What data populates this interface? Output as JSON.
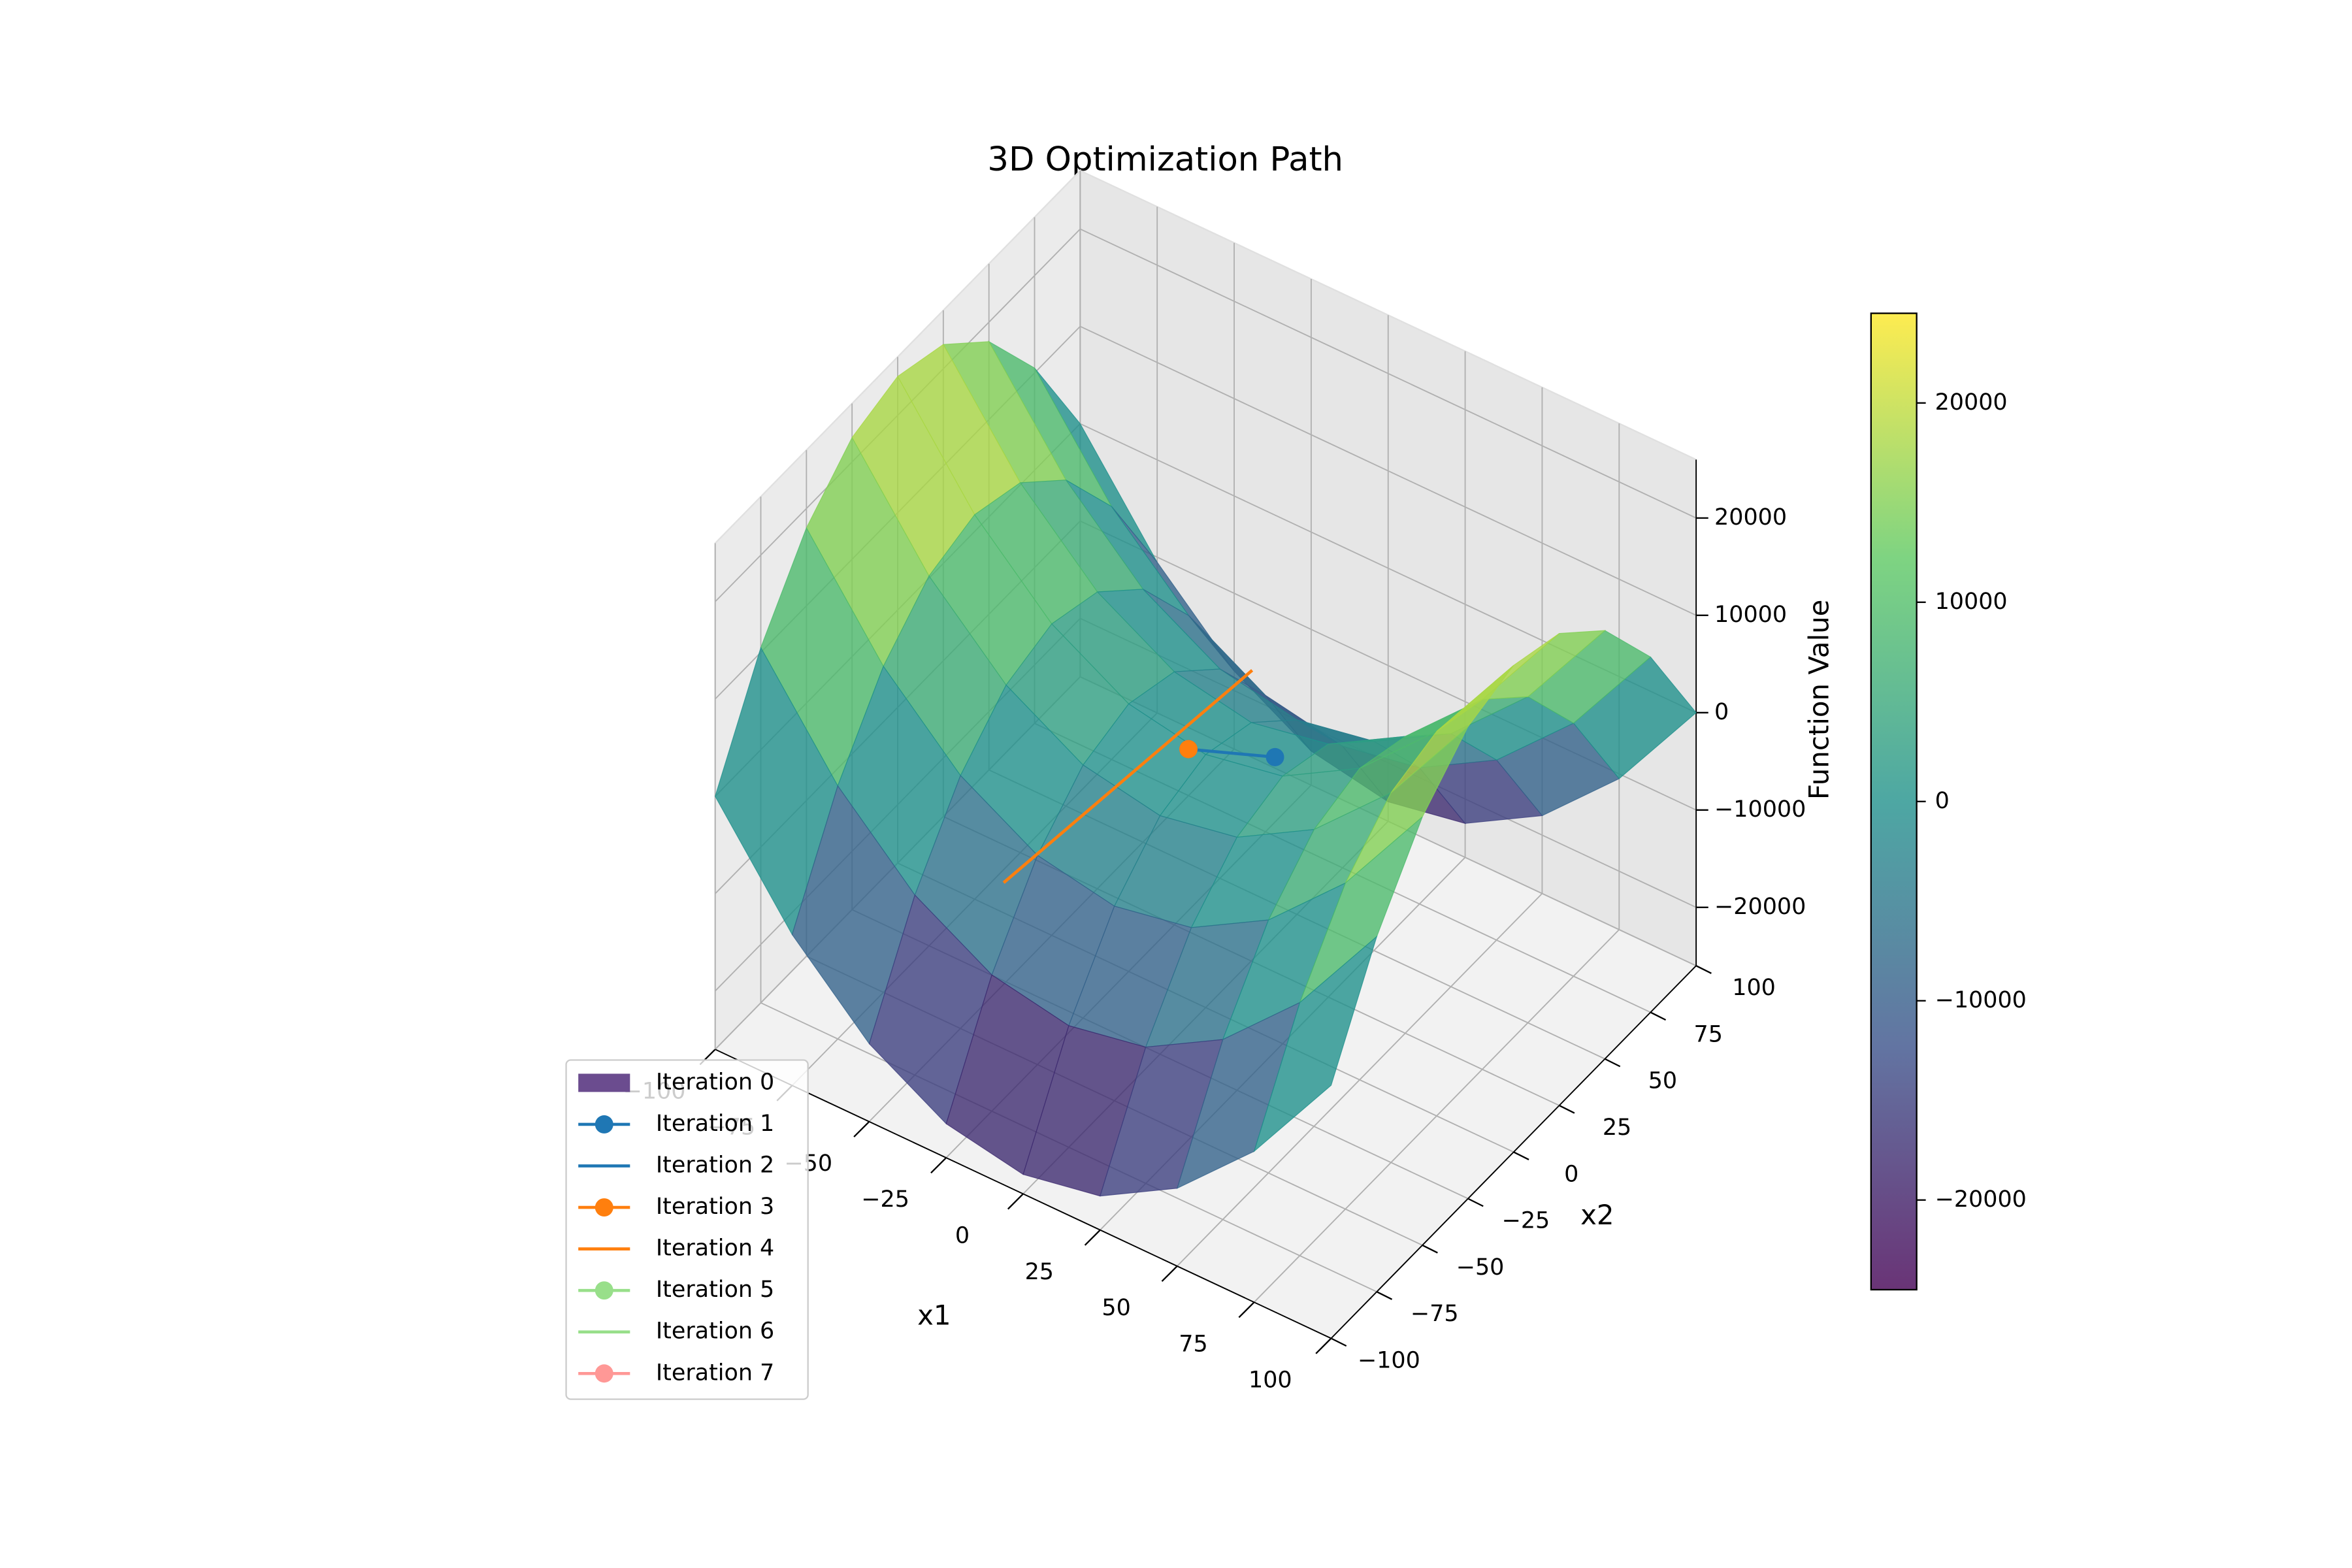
{
  "chart_data": {
    "type": "surface",
    "title": "3D Optimization Path",
    "xlabel": "x1",
    "ylabel": "x2",
    "zlabel": "Function Value",
    "xlim": [
      -100,
      100
    ],
    "ylim": [
      -100,
      100
    ],
    "zlim": [
      -26000,
      26000
    ],
    "xticks": [
      {
        "value": -100,
        "label": "−100"
      },
      {
        "value": -75,
        "label": "−75"
      },
      {
        "value": -50,
        "label": "−50"
      },
      {
        "value": -25,
        "label": "−25"
      },
      0,
      25,
      50,
      75,
      100
    ],
    "yticks": [
      {
        "value": -100,
        "label": "−100"
      },
      {
        "value": -75,
        "label": "−75"
      },
      {
        "value": -50,
        "label": "−50"
      },
      {
        "value": -25,
        "label": "−25"
      },
      0,
      25,
      50,
      75,
      100
    ],
    "zticks": [
      {
        "value": -20000,
        "label": "−20000"
      },
      {
        "value": -10000,
        "label": "−10000"
      },
      0,
      10000,
      20000
    ],
    "surface": {
      "x1": [
        -100,
        -75,
        -50,
        -25,
        0,
        25,
        50,
        75,
        100
      ],
      "x2": [
        -100,
        -75,
        -50,
        -25,
        0,
        25,
        50,
        75,
        100
      ],
      "z": [
        [
          0,
          10500,
          18000,
          22500,
          24000,
          22500,
          18000,
          10500,
          0
        ],
        [
          -10500,
          0,
          7500,
          12000,
          13500,
          12000,
          7500,
          0,
          -10500
        ],
        [
          -18000,
          -7500,
          0,
          4500,
          6000,
          4500,
          0,
          -7500,
          -18000
        ],
        [
          -22500,
          -12000,
          -4500,
          0,
          1500,
          0,
          -4500,
          -12000,
          -22500
        ],
        [
          -24000,
          -13500,
          -6000,
          -1500,
          0,
          -1500,
          -6000,
          -13500,
          -24000
        ],
        [
          -22500,
          -12000,
          -4500,
          0,
          1500,
          0,
          -4500,
          -12000,
          -22500
        ],
        [
          -18000,
          -7500,
          0,
          4500,
          6000,
          4500,
          0,
          -7500,
          -18000
        ],
        [
          -10500,
          0,
          7500,
          12000,
          13500,
          12000,
          7500,
          0,
          -10500
        ],
        [
          0,
          10500,
          18000,
          22500,
          24000,
          22500,
          18000,
          10500,
          0
        ]
      ],
      "colormap": "viridis",
      "alpha": 0.8
    },
    "colorbar": {
      "clim": [
        -24500,
        24500
      ],
      "ticks": [
        {
          "value": -20000,
          "label": "−20000"
        },
        {
          "value": -10000,
          "label": "−10000"
        },
        0,
        10000,
        20000
      ]
    },
    "series": [
      {
        "name": "Iteration 0",
        "color": "#6b4c8f",
        "style": "patch",
        "x1": [],
        "x2": [],
        "z": []
      },
      {
        "name": "Iteration 1",
        "color": "#1f77b4",
        "style": "line-marker",
        "x1": [
          -5,
          16
        ],
        "x2": [
          -1,
          11
        ],
        "z": [
          0,
          0
        ]
      },
      {
        "name": "Iteration 2",
        "color": "#1f77b4",
        "style": "line",
        "x1": [],
        "x2": [],
        "z": []
      },
      {
        "name": "Iteration 3",
        "color": "#ff7f0e",
        "style": "line-marker",
        "x1": [
          -5
        ],
        "x2": [
          -1
        ],
        "z": [
          0
        ]
      },
      {
        "name": "Iteration 4",
        "color": "#ff7f0e",
        "style": "line",
        "x1": [
          -17,
          -8
        ],
        "x2": [
          -82,
          39
        ],
        "z": [
          0,
          0
        ]
      },
      {
        "name": "Iteration 5",
        "color": "#98df8a",
        "style": "line-marker",
        "x1": [],
        "x2": [],
        "z": []
      },
      {
        "name": "Iteration 6",
        "color": "#98df8a",
        "style": "line",
        "x1": [],
        "x2": [],
        "z": []
      },
      {
        "name": "Iteration 7",
        "color": "#ff9896",
        "style": "line-marker",
        "x1": [],
        "x2": [],
        "z": []
      }
    ],
    "legend": "lower left"
  }
}
